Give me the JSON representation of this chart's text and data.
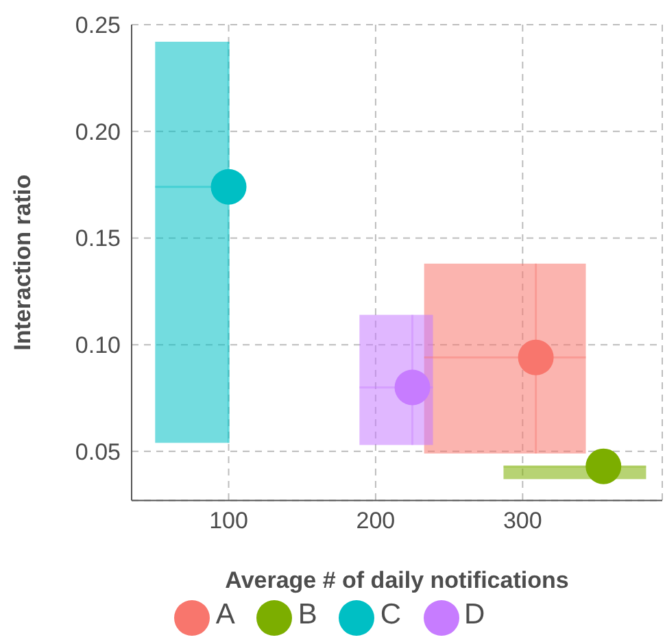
{
  "chart_data": {
    "type": "scatter",
    "xlabel": "Average # of daily notifications",
    "ylabel": "Interaction ratio",
    "xlim": [
      34,
      395
    ],
    "xticks": [
      100,
      200,
      300
    ],
    "ylim": [
      0.027,
      0.25
    ],
    "yticks": [
      0.05,
      {
        "value": 0.1,
        "label": "0.10"
      },
      0.15,
      {
        "value": 0.2,
        "label": "0.20"
      },
      0.25
    ],
    "grid": true,
    "legend": "bottom",
    "marker": "circle",
    "series": [
      {
        "name": "A",
        "color": "#f8766d",
        "x": [
          309
        ],
        "values": [
          0.094
        ],
        "xerrors": [
          [
            233,
            343
          ]
        ],
        "errors": [
          [
            0.049,
            0.138
          ]
        ]
      },
      {
        "name": "B",
        "color": "#7cae00",
        "x": [
          355
        ],
        "values": [
          0.043
        ],
        "xerrors": [
          [
            287,
            384
          ]
        ],
        "errors": [
          [
            0.037,
            0.043
          ]
        ]
      },
      {
        "name": "C",
        "color": "#00bfc4",
        "x": [
          100
        ],
        "values": [
          0.174
        ],
        "xerrors": [
          [
            50,
            100
          ]
        ],
        "errors": [
          [
            0.054,
            0.242
          ]
        ]
      },
      {
        "name": "D",
        "color": "#c77cff",
        "x": [
          225
        ],
        "values": [
          0.08
        ],
        "xerrors": [
          [
            189,
            239
          ]
        ],
        "errors": [
          [
            0.053,
            0.114
          ]
        ]
      }
    ]
  }
}
